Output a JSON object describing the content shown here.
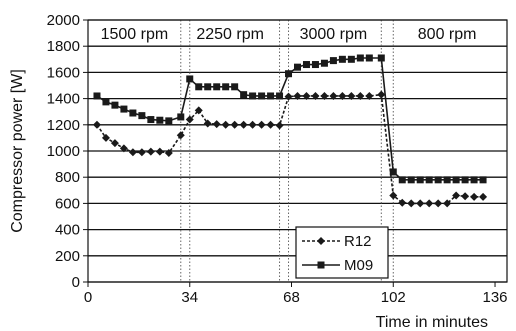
{
  "chart_data": {
    "type": "line",
    "xlabel": "Time in minutes",
    "ylabel": "Compressor power [W]",
    "xlim": [
      0,
      140
    ],
    "ylim": [
      0,
      2000
    ],
    "x_ticks": [
      0,
      34,
      68,
      102,
      136
    ],
    "y_ticks": [
      0,
      200,
      400,
      600,
      800,
      1000,
      1200,
      1400,
      1600,
      1800,
      2000
    ],
    "grid": "horizontal",
    "legend_position": "bottom-center",
    "phases": [
      {
        "label": "1500 rpm",
        "x_start": 0,
        "x_end": 31
      },
      {
        "label": "2250 rpm",
        "x_start": 31,
        "x_end": 64
      },
      {
        "label": "3000 rpm",
        "x_start": 64,
        "x_end": 100
      },
      {
        "label": "800 rpm",
        "x_start": 100,
        "x_end": 140
      }
    ],
    "phase_boundaries": [
      31,
      34,
      64,
      67,
      98,
      102
    ],
    "series": [
      {
        "name": "R12",
        "marker": "diamond",
        "line_style": "dashed",
        "color": "#1a1a1a",
        "x": [
          3,
          6,
          9,
          12,
          15,
          18,
          21,
          24,
          27,
          31,
          34,
          37,
          40,
          43,
          46,
          49,
          52,
          55,
          58,
          61,
          64,
          67,
          70,
          73,
          76,
          79,
          82,
          85,
          88,
          91,
          94,
          98,
          102,
          105,
          108,
          111,
          114,
          117,
          120,
          123,
          126,
          129,
          132
        ],
        "values": [
          1200,
          1100,
          1060,
          1020,
          990,
          990,
          995,
          995,
          985,
          1120,
          1240,
          1310,
          1210,
          1205,
          1200,
          1200,
          1200,
          1200,
          1200,
          1200,
          1195,
          1415,
          1420,
          1420,
          1420,
          1420,
          1420,
          1420,
          1420,
          1420,
          1420,
          1430,
          660,
          605,
          600,
          600,
          600,
          600,
          600,
          660,
          655,
          650,
          650
        ]
      },
      {
        "name": "M09",
        "marker": "square",
        "line_style": "solid",
        "color": "#1a1a1a",
        "x": [
          3,
          6,
          9,
          12,
          15,
          18,
          21,
          24,
          27,
          31,
          34,
          37,
          40,
          43,
          46,
          49,
          52,
          55,
          58,
          61,
          64,
          67,
          70,
          73,
          76,
          79,
          82,
          85,
          88,
          91,
          94,
          98,
          102,
          105,
          108,
          111,
          114,
          117,
          120,
          123,
          126,
          129,
          132
        ],
        "values": [
          1420,
          1375,
          1350,
          1320,
          1290,
          1270,
          1240,
          1235,
          1230,
          1260,
          1550,
          1490,
          1490,
          1490,
          1490,
          1490,
          1430,
          1420,
          1420,
          1420,
          1420,
          1590,
          1640,
          1660,
          1660,
          1670,
          1690,
          1700,
          1700,
          1710,
          1710,
          1710,
          840,
          780,
          780,
          780,
          780,
          780,
          780,
          780,
          780,
          780,
          780
        ]
      }
    ]
  }
}
